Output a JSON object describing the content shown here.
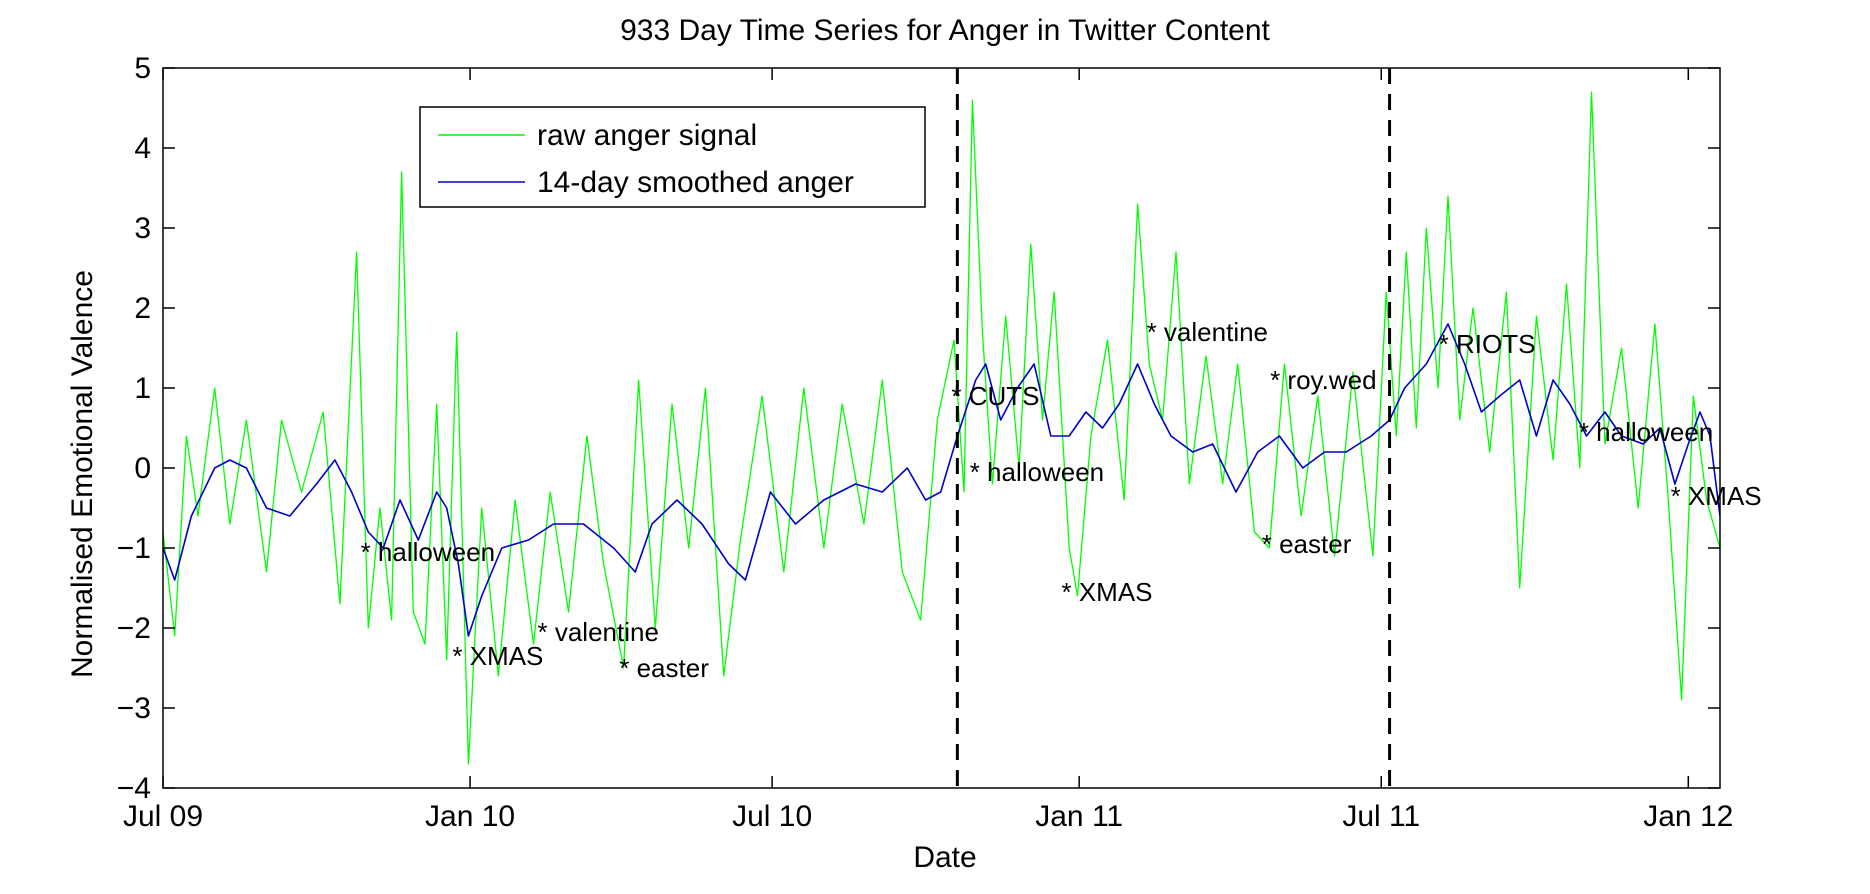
{
  "chart_data": {
    "type": "line",
    "title": "933 Day Time Series for Anger in Twitter Content",
    "xlabel": "Date",
    "ylabel": "Normalised Emotional Valence",
    "xlim": [
      "2009-07-01",
      "2012-01-20"
    ],
    "ylim": [
      -4,
      5
    ],
    "x_ticks": [
      {
        "date": "2009-07-01",
        "label": "Jul 09"
      },
      {
        "date": "2010-01-01",
        "label": "Jan 10"
      },
      {
        "date": "2010-07-01",
        "label": "Jul 10"
      },
      {
        "date": "2011-01-01",
        "label": "Jan 11"
      },
      {
        "date": "2011-07-01",
        "label": "Jul 11"
      },
      {
        "date": "2012-01-01",
        "label": "Jan 12"
      }
    ],
    "y_ticks": [
      -4,
      -3,
      -2,
      -1,
      0,
      1,
      2,
      3,
      4,
      5
    ],
    "legend_position": "top-left",
    "grid": false,
    "colors": {
      "raw": "#00ff00",
      "smoothed": "#0000cc",
      "axes": "#000000",
      "event_line": "#000000"
    },
    "vertical_lines": [
      "2010-10-20",
      "2011-07-06"
    ],
    "series": [
      {
        "name": "raw anger signal",
        "color": "#00ff00",
        "points": [
          [
            "2009-07-01",
            -0.8
          ],
          [
            "2009-07-08",
            -2.1
          ],
          [
            "2009-07-15",
            0.4
          ],
          [
            "2009-07-22",
            -0.6
          ],
          [
            "2009-08-01",
            1.0
          ],
          [
            "2009-08-10",
            -0.7
          ],
          [
            "2009-08-20",
            0.6
          ],
          [
            "2009-09-01",
            -1.3
          ],
          [
            "2009-09-10",
            0.6
          ],
          [
            "2009-09-22",
            -0.3
          ],
          [
            "2009-10-05",
            0.7
          ],
          [
            "2009-10-15",
            -1.7
          ],
          [
            "2009-10-25",
            2.7
          ],
          [
            "2009-11-01",
            -2.0
          ],
          [
            "2009-11-08",
            -0.5
          ],
          [
            "2009-11-15",
            -1.9
          ],
          [
            "2009-11-21",
            3.7
          ],
          [
            "2009-11-28",
            -1.8
          ],
          [
            "2009-12-05",
            -2.2
          ],
          [
            "2009-12-12",
            0.8
          ],
          [
            "2009-12-18",
            -2.4
          ],
          [
            "2009-12-24",
            1.7
          ],
          [
            "2009-12-31",
            -3.7
          ],
          [
            "2010-01-08",
            -0.5
          ],
          [
            "2010-01-18",
            -2.6
          ],
          [
            "2010-01-28",
            -0.4
          ],
          [
            "2010-02-08",
            -2.2
          ],
          [
            "2010-02-18",
            -0.3
          ],
          [
            "2010-03-01",
            -1.8
          ],
          [
            "2010-03-12",
            0.4
          ],
          [
            "2010-03-22",
            -1.2
          ],
          [
            "2010-04-03",
            -2.5
          ],
          [
            "2010-04-12",
            1.1
          ],
          [
            "2010-04-22",
            -2.0
          ],
          [
            "2010-05-02",
            0.8
          ],
          [
            "2010-05-12",
            -1.0
          ],
          [
            "2010-05-22",
            1.0
          ],
          [
            "2010-06-02",
            -2.6
          ],
          [
            "2010-06-12",
            -0.9
          ],
          [
            "2010-06-25",
            0.9
          ],
          [
            "2010-07-08",
            -1.3
          ],
          [
            "2010-07-20",
            1.0
          ],
          [
            "2010-08-01",
            -1.0
          ],
          [
            "2010-08-12",
            0.8
          ],
          [
            "2010-08-25",
            -0.7
          ],
          [
            "2010-09-05",
            1.1
          ],
          [
            "2010-09-17",
            -1.3
          ],
          [
            "2010-09-28",
            -1.9
          ],
          [
            "2010-10-08",
            0.6
          ],
          [
            "2010-10-18",
            1.6
          ],
          [
            "2010-10-24",
            -0.3
          ],
          [
            "2010-10-29",
            4.6
          ],
          [
            "2010-11-04",
            1.7
          ],
          [
            "2010-11-10",
            -0.2
          ],
          [
            "2010-11-18",
            1.9
          ],
          [
            "2010-11-26",
            0.0
          ],
          [
            "2010-12-03",
            2.8
          ],
          [
            "2010-12-10",
            0.6
          ],
          [
            "2010-12-17",
            2.2
          ],
          [
            "2010-12-26",
            -1.0
          ],
          [
            "2010-12-31",
            -1.6
          ],
          [
            "2011-01-08",
            0.4
          ],
          [
            "2011-01-18",
            1.6
          ],
          [
            "2011-01-28",
            -0.4
          ],
          [
            "2011-02-05",
            3.3
          ],
          [
            "2011-02-12",
            1.3
          ],
          [
            "2011-02-20",
            0.6
          ],
          [
            "2011-02-28",
            2.7
          ],
          [
            "2011-03-08",
            -0.2
          ],
          [
            "2011-03-18",
            1.4
          ],
          [
            "2011-03-28",
            -0.2
          ],
          [
            "2011-04-06",
            1.3
          ],
          [
            "2011-04-16",
            -0.8
          ],
          [
            "2011-04-25",
            -1.0
          ],
          [
            "2011-05-04",
            1.3
          ],
          [
            "2011-05-14",
            -0.6
          ],
          [
            "2011-05-24",
            0.9
          ],
          [
            "2011-06-03",
            -1.1
          ],
          [
            "2011-06-14",
            1.2
          ],
          [
            "2011-06-26",
            -1.1
          ],
          [
            "2011-07-04",
            2.2
          ],
          [
            "2011-07-10",
            0.4
          ],
          [
            "2011-07-16",
            2.7
          ],
          [
            "2011-07-22",
            0.5
          ],
          [
            "2011-07-28",
            3.0
          ],
          [
            "2011-08-04",
            1.0
          ],
          [
            "2011-08-10",
            3.4
          ],
          [
            "2011-08-17",
            0.6
          ],
          [
            "2011-08-25",
            2.0
          ],
          [
            "2011-09-04",
            0.2
          ],
          [
            "2011-09-14",
            2.2
          ],
          [
            "2011-09-22",
            -1.5
          ],
          [
            "2011-10-02",
            1.9
          ],
          [
            "2011-10-12",
            0.1
          ],
          [
            "2011-10-20",
            2.3
          ],
          [
            "2011-10-28",
            0.0
          ],
          [
            "2011-11-04",
            4.7
          ],
          [
            "2011-11-12",
            0.3
          ],
          [
            "2011-11-22",
            1.5
          ],
          [
            "2011-12-02",
            -0.5
          ],
          [
            "2011-12-12",
            1.8
          ],
          [
            "2011-12-20",
            -0.4
          ],
          [
            "2011-12-28",
            -2.9
          ],
          [
            "2012-01-04",
            0.9
          ],
          [
            "2012-01-12",
            -0.4
          ],
          [
            "2012-01-20",
            -1.0
          ]
        ]
      },
      {
        "name": "14-day smoothed anger",
        "color": "#0000cc",
        "points": [
          [
            "2009-07-01",
            -1.0
          ],
          [
            "2009-07-08",
            -1.4
          ],
          [
            "2009-07-18",
            -0.6
          ],
          [
            "2009-08-01",
            0.0
          ],
          [
            "2009-08-10",
            0.1
          ],
          [
            "2009-08-20",
            0.0
          ],
          [
            "2009-09-01",
            -0.5
          ],
          [
            "2009-09-15",
            -0.6
          ],
          [
            "2009-10-01",
            -0.2
          ],
          [
            "2009-10-12",
            0.1
          ],
          [
            "2009-10-22",
            -0.3
          ],
          [
            "2009-11-01",
            -0.8
          ],
          [
            "2009-11-10",
            -1.0
          ],
          [
            "2009-11-20",
            -0.4
          ],
          [
            "2009-12-01",
            -0.9
          ],
          [
            "2009-12-12",
            -0.3
          ],
          [
            "2009-12-18",
            -0.5
          ],
          [
            "2009-12-25",
            -1.2
          ],
          [
            "2009-12-31",
            -2.1
          ],
          [
            "2010-01-08",
            -1.6
          ],
          [
            "2010-01-20",
            -1.0
          ],
          [
            "2010-02-05",
            -0.9
          ],
          [
            "2010-02-20",
            -0.7
          ],
          [
            "2010-03-10",
            -0.7
          ],
          [
            "2010-03-28",
            -1.0
          ],
          [
            "2010-04-10",
            -1.3
          ],
          [
            "2010-04-20",
            -0.7
          ],
          [
            "2010-05-05",
            -0.4
          ],
          [
            "2010-05-20",
            -0.7
          ],
          [
            "2010-06-05",
            -1.2
          ],
          [
            "2010-06-15",
            -1.4
          ],
          [
            "2010-06-30",
            -0.3
          ],
          [
            "2010-07-15",
            -0.7
          ],
          [
            "2010-08-01",
            -0.4
          ],
          [
            "2010-08-20",
            -0.2
          ],
          [
            "2010-09-05",
            -0.3
          ],
          [
            "2010-09-20",
            0.0
          ],
          [
            "2010-10-01",
            -0.4
          ],
          [
            "2010-10-10",
            -0.3
          ],
          [
            "2010-10-20",
            0.4
          ],
          [
            "2010-10-31",
            1.1
          ],
          [
            "2010-11-06",
            1.3
          ],
          [
            "2010-11-15",
            0.6
          ],
          [
            "2010-11-25",
            1.0
          ],
          [
            "2010-12-05",
            1.3
          ],
          [
            "2010-12-15",
            0.4
          ],
          [
            "2010-12-26",
            0.4
          ],
          [
            "2011-01-05",
            0.7
          ],
          [
            "2011-01-15",
            0.5
          ],
          [
            "2011-01-25",
            0.8
          ],
          [
            "2011-02-05",
            1.3
          ],
          [
            "2011-02-15",
            0.8
          ],
          [
            "2011-02-25",
            0.4
          ],
          [
            "2011-03-10",
            0.2
          ],
          [
            "2011-03-22",
            0.3
          ],
          [
            "2011-04-05",
            -0.3
          ],
          [
            "2011-04-18",
            0.2
          ],
          [
            "2011-05-01",
            0.4
          ],
          [
            "2011-05-15",
            0.0
          ],
          [
            "2011-05-28",
            0.2
          ],
          [
            "2011-06-10",
            0.2
          ],
          [
            "2011-06-25",
            0.4
          ],
          [
            "2011-07-06",
            0.6
          ],
          [
            "2011-07-15",
            1.0
          ],
          [
            "2011-07-28",
            1.3
          ],
          [
            "2011-08-10",
            1.8
          ],
          [
            "2011-08-20",
            1.3
          ],
          [
            "2011-08-30",
            0.7
          ],
          [
            "2011-09-10",
            0.9
          ],
          [
            "2011-09-22",
            1.1
          ],
          [
            "2011-10-02",
            0.4
          ],
          [
            "2011-10-12",
            1.1
          ],
          [
            "2011-10-22",
            0.8
          ],
          [
            "2011-11-01",
            0.4
          ],
          [
            "2011-11-12",
            0.7
          ],
          [
            "2011-11-22",
            0.4
          ],
          [
            "2011-12-05",
            0.3
          ],
          [
            "2011-12-15",
            0.5
          ],
          [
            "2011-12-24",
            -0.2
          ],
          [
            "2012-01-01",
            0.3
          ],
          [
            "2012-01-08",
            0.7
          ],
          [
            "2012-01-14",
            0.4
          ],
          [
            "2012-01-20",
            -0.6
          ]
        ]
      }
    ],
    "annotations": [
      {
        "date": "2009-10-31",
        "y": -1.05,
        "text": "* halloween"
      },
      {
        "date": "2009-12-25",
        "y": -2.35,
        "text": "* XMAS"
      },
      {
        "date": "2010-02-14",
        "y": -2.05,
        "text": "* valentine"
      },
      {
        "date": "2010-04-04",
        "y": -2.5,
        "text": "* easter"
      },
      {
        "date": "2010-10-20",
        "y": 0.9,
        "text": "* CUTS"
      },
      {
        "date": "2010-10-31",
        "y": -0.05,
        "text": "* halloween"
      },
      {
        "date": "2010-12-25",
        "y": -1.55,
        "text": "* XMAS"
      },
      {
        "date": "2011-02-14",
        "y": 1.7,
        "text": "* valentine"
      },
      {
        "date": "2011-04-24",
        "y": -0.95,
        "text": "* easter"
      },
      {
        "date": "2011-04-29",
        "y": 1.1,
        "text": "* roy.wed"
      },
      {
        "date": "2011-08-08",
        "y": 1.55,
        "text": "* RIOTS"
      },
      {
        "date": "2011-10-31",
        "y": 0.45,
        "text": "* halloween"
      },
      {
        "date": "2011-12-25",
        "y": -0.35,
        "text": "* XMAS"
      }
    ]
  }
}
